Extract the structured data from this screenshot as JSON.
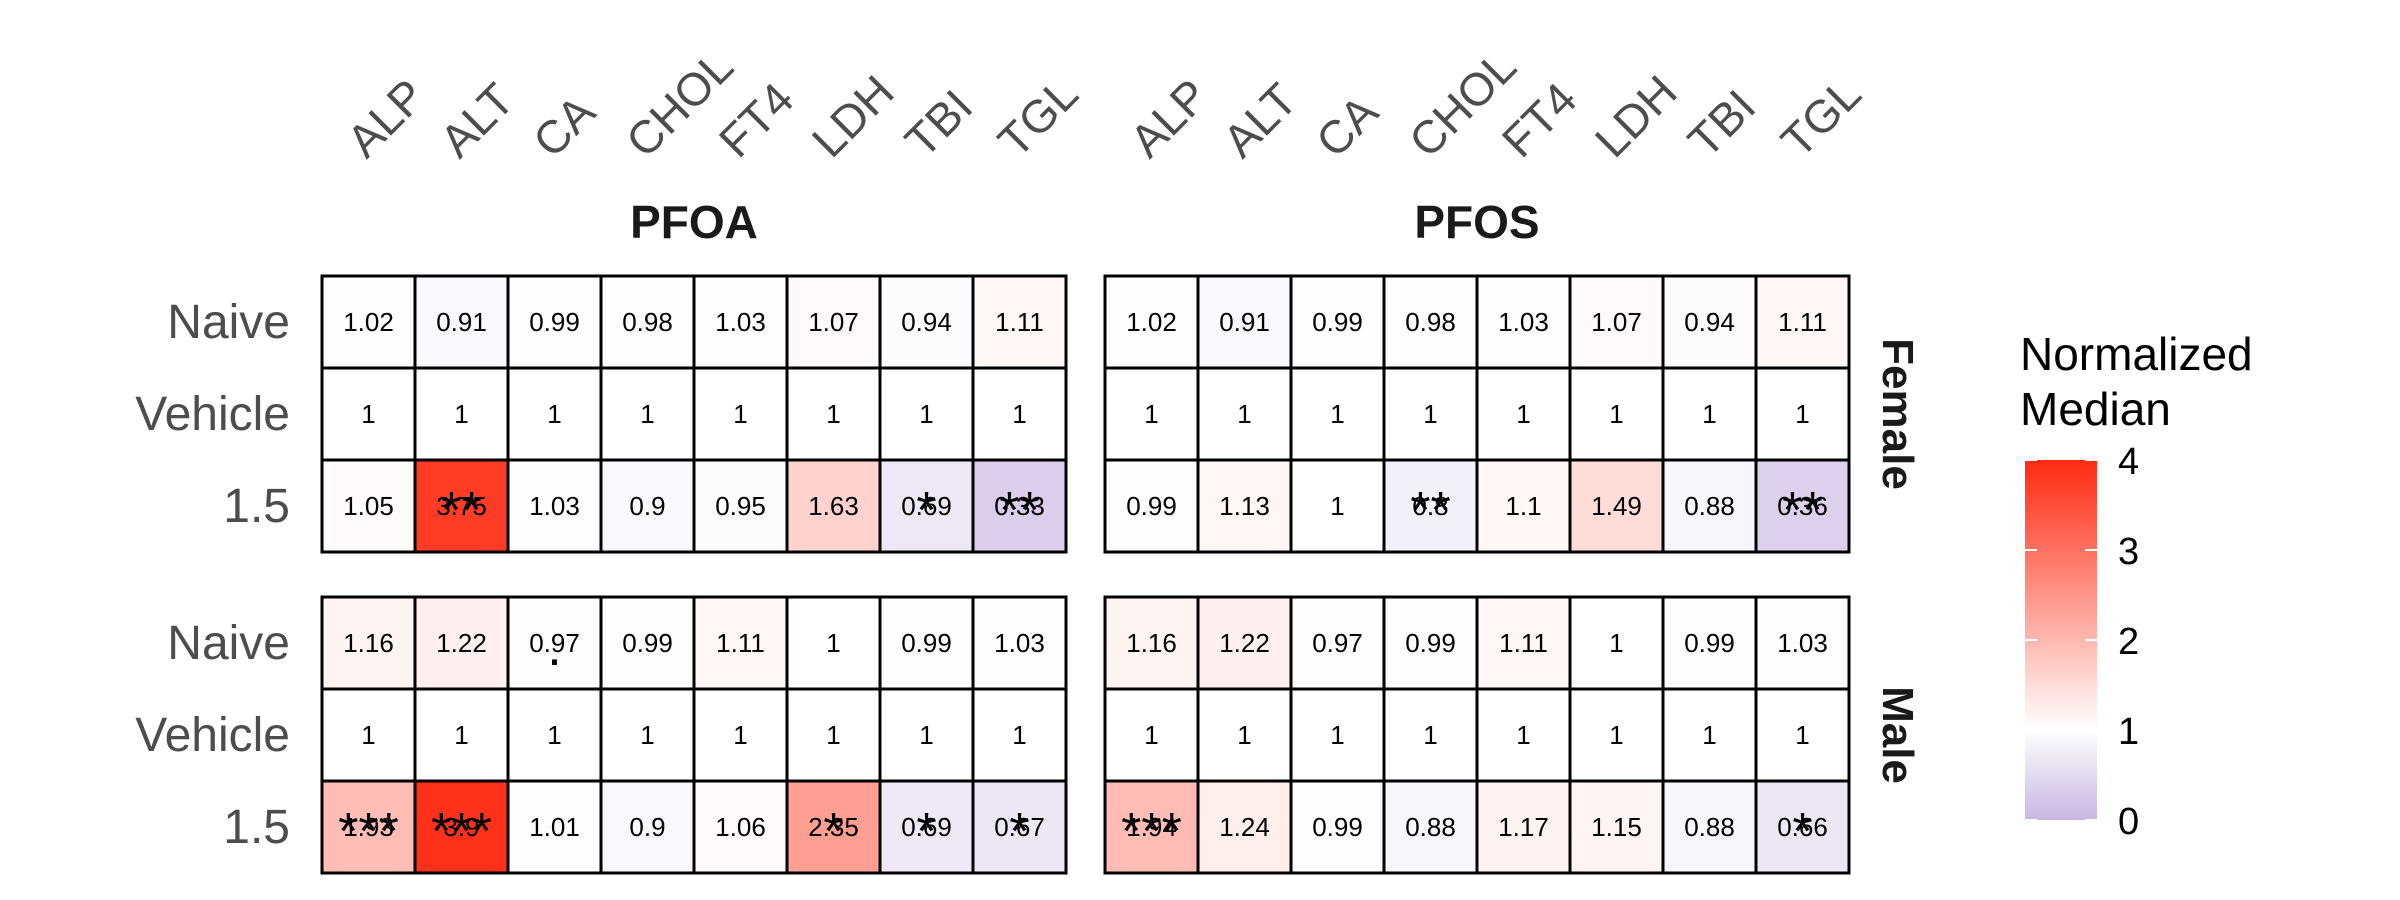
{
  "chart_data": {
    "type": "heatmap",
    "columns": [
      "ALP",
      "ALT",
      "CA",
      "CHOL",
      "FT4",
      "LDH",
      "TBI",
      "TGL"
    ],
    "rows": [
      "Naive",
      "Vehicle",
      "1.5"
    ],
    "facet_columns": [
      "PFOA",
      "PFOS"
    ],
    "facet_rows": [
      "Female",
      "Male"
    ],
    "legend": {
      "title_lines": [
        "Normalized",
        "Median"
      ],
      "ticks": [
        0,
        1,
        2,
        3,
        4
      ],
      "range": [
        0,
        4
      ],
      "low_color": "#c8b6e2",
      "mid_color": "#ffffff",
      "high_color": "#ff2a12",
      "midpoint": 1,
      "position": "right"
    },
    "panels": [
      {
        "compound": "PFOA",
        "sex": "Female",
        "values": [
          [
            1.02,
            0.91,
            0.99,
            0.98,
            1.03,
            1.07,
            0.94,
            1.11
          ],
          [
            1,
            1,
            1,
            1,
            1,
            1,
            1,
            1
          ],
          [
            1.05,
            3.75,
            1.03,
            0.9,
            0.95,
            1.63,
            0.69,
            0.33
          ]
        ],
        "significance": [
          [
            "",
            "",
            "",
            "",
            "",
            "",
            "",
            ""
          ],
          [
            "",
            "",
            "",
            "",
            "",
            "",
            "",
            ""
          ],
          [
            "",
            "**",
            "",
            "",
            "",
            "",
            "*",
            "**"
          ]
        ]
      },
      {
        "compound": "PFOS",
        "sex": "Female",
        "values": [
          [
            1.02,
            0.91,
            0.99,
            0.98,
            1.03,
            1.07,
            0.94,
            1.11
          ],
          [
            1,
            1,
            1,
            1,
            1,
            1,
            1,
            1
          ],
          [
            0.99,
            1.13,
            1,
            0.8,
            1.1,
            1.49,
            0.88,
            0.36
          ]
        ],
        "significance": [
          [
            "",
            "",
            "",
            "",
            "",
            "",
            "",
            ""
          ],
          [
            "",
            "",
            "",
            "",
            "",
            "",
            "",
            ""
          ],
          [
            "",
            "",
            "",
            "**",
            "",
            "",
            "",
            "**"
          ]
        ]
      },
      {
        "compound": "PFOA",
        "sex": "Male",
        "values": [
          [
            1.16,
            1.22,
            0.97,
            0.99,
            1.11,
            1,
            0.99,
            1.03
          ],
          [
            1,
            1,
            1,
            1,
            1,
            1,
            1,
            1
          ],
          [
            1.93,
            3.9,
            1.01,
            0.9,
            1.06,
            2.35,
            0.69,
            0.67
          ]
        ],
        "significance": [
          [
            "",
            "",
            ".",
            "",
            "",
            "",
            "",
            ""
          ],
          [
            "",
            "",
            "",
            "",
            "",
            "",
            "",
            ""
          ],
          [
            "***",
            "***",
            "",
            "",
            "",
            "*",
            "*",
            "*"
          ]
        ]
      },
      {
        "compound": "PFOS",
        "sex": "Male",
        "values": [
          [
            1.16,
            1.22,
            0.97,
            0.99,
            1.11,
            1,
            0.99,
            1.03
          ],
          [
            1,
            1,
            1,
            1,
            1,
            1,
            1,
            1
          ],
          [
            1.94,
            1.24,
            0.99,
            0.88,
            1.17,
            1.15,
            0.88,
            0.66
          ]
        ],
        "significance": [
          [
            "",
            "",
            "",
            "",
            "",
            "",
            "",
            ""
          ],
          [
            "",
            "",
            "",
            "",
            "",
            "",
            "",
            ""
          ],
          [
            "***",
            "",
            "",
            "",
            "",
            "",
            "",
            "*"
          ]
        ]
      }
    ]
  }
}
